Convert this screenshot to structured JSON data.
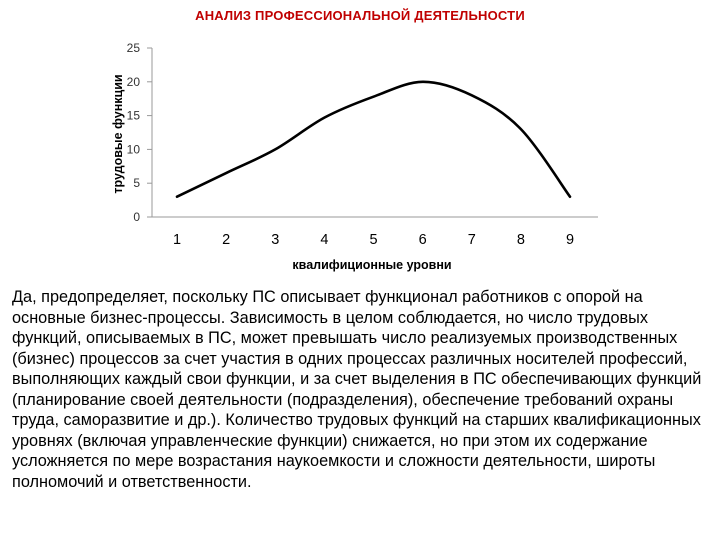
{
  "slide": {
    "title": "АНАЛИЗ ПРОФЕССИОНАЛЬНОЙ ДЕЯТЕЛЬНОСТИ",
    "title_color": "#c00000",
    "body": "Да, предопределяет, поскольку ПС описывает функционал работников с опорой на основные бизнес-процессы. Зависимость в целом соблюдается, но число трудовых функций, описываемых в ПС, может превышать число реализуемых производственных (бизнес) процессов за счет участия в одних процессах различных носителей профессий, выполняющих каждый свои функции, и за счет выделения в ПС обеспечивающих функций (планирование своей деятельности (подразделения), обеспечение требований охраны труда, саморазвитие и др.). Количество трудовых функций на старших квалификационных уровнях (включая управленческие функции) снижается, но при этом их содержание усложняется по мере возрастания наукоемкости и сложности деятельности, широты полномочий и ответственности."
  },
  "chart_data": {
    "type": "line",
    "xlabel": "квалифиционные уровни",
    "ylabel": "трудовые функции",
    "categories": [
      "1",
      "2",
      "3",
      "4",
      "5",
      "6",
      "7",
      "8",
      "9"
    ],
    "values": [
      3,
      6.5,
      10,
      14.7,
      17.8,
      20,
      18,
      13,
      3
    ],
    "yticks": [
      "0",
      "5",
      "10",
      "15",
      "20",
      "25"
    ],
    "ylim": [
      0,
      25
    ],
    "line_color": "#000000",
    "grid": false
  }
}
